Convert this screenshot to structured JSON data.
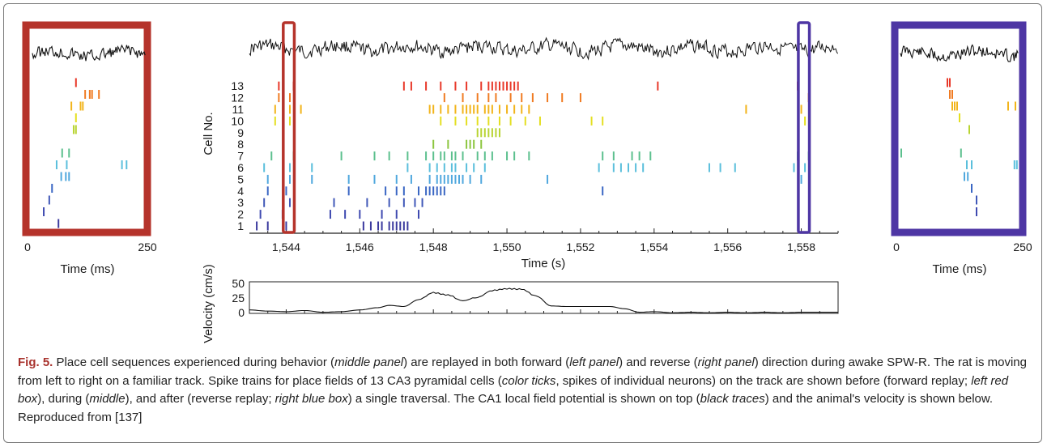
{
  "figure": {
    "left_panel": {
      "xtick_labels": [
        "0",
        "250"
      ],
      "xlabel": "Time (ms)"
    },
    "right_panel": {
      "xtick_labels": [
        "0",
        "250"
      ],
      "xlabel": "Time (ms)"
    },
    "middle_panel": {
      "ylabel": "Cell No.",
      "cell_labels": [
        "1",
        "2",
        "3",
        "4",
        "5",
        "6",
        "7",
        "8",
        "9",
        "10",
        "11",
        "12",
        "13"
      ],
      "xtick_labels": [
        "1,544",
        "1,546",
        "1,548",
        "1,550",
        "1,552",
        "1,554",
        "1,556",
        "1,558"
      ],
      "xlabel": "Time (s)"
    },
    "velocity_panel": {
      "ylabel": "Velocity (cm/s)",
      "ytick_labels": [
        "50",
        "25",
        "0"
      ]
    },
    "colors": {
      "forward_box": "#b5332b",
      "reverse_box": "#4e36a4",
      "cells": [
        "#3b3a9e",
        "#3f4ab0",
        "#4058b8",
        "#3b67c4",
        "#50a8de",
        "#5bbfdc",
        "#5cc08e",
        "#8cc63f",
        "#b8d432",
        "#e4df21",
        "#f2b41b",
        "#f07b22",
        "#e8392a"
      ]
    }
  },
  "chart_data": {
    "type": "scatter",
    "description_free": true,
    "xlim": [
      1543.0,
      1559.0
    ],
    "ylim": [
      0,
      50
    ],
    "replay_windows": [
      [
        1543.92,
        1544.22
      ],
      [
        1557.92,
        1558.22
      ]
    ],
    "spikes": [
      {
        "cell": 1,
        "times": [
          1543.2,
          1543.5,
          1544.0,
          1546.1,
          1546.3,
          1546.5,
          1546.6,
          1546.8,
          1546.9,
          1547.0,
          1547.1,
          1547.2,
          1547.3
        ]
      },
      {
        "cell": 2,
        "times": [
          1543.3,
          1543.9,
          1545.2,
          1545.6,
          1546.0,
          1546.6,
          1547.0,
          1547.6
        ]
      },
      {
        "cell": 3,
        "times": [
          1543.4,
          1544.1,
          1545.3,
          1546.2,
          1546.8,
          1547.2,
          1547.5,
          1547.7
        ]
      },
      {
        "cell": 4,
        "times": [
          1543.5,
          1544.0,
          1545.7,
          1546.7,
          1547.0,
          1547.2,
          1547.6,
          1547.8,
          1547.9,
          1548.0,
          1548.1,
          1548.2,
          1548.3,
          1552.6
        ]
      },
      {
        "cell": 5,
        "times": [
          1543.5,
          1544.1,
          1544.7,
          1545.7,
          1546.4,
          1547.0,
          1547.4,
          1547.9,
          1548.1,
          1548.2,
          1548.3,
          1548.4,
          1548.5,
          1548.6,
          1548.7,
          1548.8,
          1549.0,
          1549.3,
          1551.1,
          1558.0
        ]
      },
      {
        "cell": 6,
        "times": [
          1543.4,
          1544.1,
          1544.7,
          1547.3,
          1547.9,
          1548.1,
          1548.3,
          1548.5,
          1548.6,
          1548.9,
          1549.1,
          1549.4,
          1552.5,
          1552.9,
          1553.1,
          1553.3,
          1553.5,
          1553.7,
          1555.5,
          1555.8,
          1556.2,
          1557.8,
          1558.1
        ]
      },
      {
        "cell": 7,
        "times": [
          1543.6,
          1544.2,
          1545.5,
          1546.4,
          1546.8,
          1547.3,
          1547.8,
          1548.0,
          1548.2,
          1548.3,
          1548.5,
          1548.6,
          1548.8,
          1549.2,
          1549.4,
          1549.6,
          1550.0,
          1550.2,
          1550.6,
          1552.6,
          1552.9,
          1553.4,
          1553.6,
          1553.9,
          1557.9,
          1558.2
        ]
      },
      {
        "cell": 8,
        "times": [
          1548.0,
          1548.4,
          1548.9,
          1549.0,
          1549.1,
          1549.3
        ]
      },
      {
        "cell": 9,
        "times": [
          1549.2,
          1549.3,
          1549.4,
          1549.5,
          1549.6,
          1549.7,
          1549.8
        ]
      },
      {
        "cell": 10,
        "times": [
          1543.7,
          1544.1,
          1548.2,
          1548.6,
          1548.9,
          1549.2,
          1549.5,
          1549.8,
          1550.1,
          1550.5,
          1550.9,
          1552.3,
          1552.6,
          1558.1
        ]
      },
      {
        "cell": 11,
        "times": [
          1543.7,
          1544.1,
          1544.4,
          1547.9,
          1548.0,
          1548.2,
          1548.4,
          1548.6,
          1548.8,
          1548.9,
          1549.0,
          1549.1,
          1549.2,
          1549.4,
          1549.5,
          1549.6,
          1549.8,
          1550.0,
          1550.2,
          1550.4,
          1550.6,
          1556.5,
          1558.0
        ]
      },
      {
        "cell": 12,
        "times": [
          1543.8,
          1544.1,
          1548.3,
          1548.8,
          1549.2,
          1549.5,
          1549.7,
          1550.1,
          1550.4,
          1550.7,
          1551.1,
          1551.5,
          1552.0,
          1558.2
        ]
      },
      {
        "cell": 13,
        "times": [
          1543.8,
          1544.2,
          1547.2,
          1547.4,
          1547.8,
          1548.2,
          1548.6,
          1548.9,
          1549.3,
          1549.5,
          1549.6,
          1549.7,
          1549.8,
          1549.9,
          1550.0,
          1550.1,
          1550.2,
          1550.3,
          1554.1,
          1557.9
        ]
      }
    ],
    "velocity": {
      "x": [
        1543.0,
        1543.5,
        1544.0,
        1544.5,
        1545.0,
        1545.5,
        1546.0,
        1546.5,
        1546.8,
        1547.2,
        1547.6,
        1548.0,
        1548.4,
        1548.8,
        1549.2,
        1549.6,
        1550.0,
        1550.4,
        1550.8,
        1551.2,
        1551.6,
        1552.0,
        1552.4,
        1552.8,
        1553.2,
        1553.6,
        1554.0,
        1554.5,
        1555.0,
        1555.5,
        1556.0,
        1556.5,
        1557.0,
        1557.5,
        1558.0,
        1558.5,
        1559.0
      ],
      "y": [
        6,
        4,
        3,
        5,
        2,
        3,
        6,
        10,
        14,
        12,
        24,
        36,
        32,
        22,
        28,
        40,
        43,
        42,
        30,
        13,
        12,
        12,
        12,
        12,
        8,
        2,
        3,
        1,
        2,
        1,
        2,
        1,
        2,
        1,
        2,
        2,
        2
      ]
    },
    "forward_replay": {
      "xlim": [
        0,
        250
      ],
      "spikes": [
        {
          "cell": 1,
          "times": [
            62
          ]
        },
        {
          "cell": 2,
          "times": [
            30
          ]
        },
        {
          "cell": 3,
          "times": [
            42
          ]
        },
        {
          "cell": 4,
          "times": [
            48
          ]
        },
        {
          "cell": 5,
          "times": [
            68,
            78,
            85
          ]
        },
        {
          "cell": 6,
          "times": [
            58,
            80,
            200,
            210
          ]
        },
        {
          "cell": 7,
          "times": [
            70,
            85
          ]
        },
        {
          "cell": 9,
          "times": [
            95,
            100
          ]
        },
        {
          "cell": 10,
          "times": [
            100
          ]
        },
        {
          "cell": 11,
          "times": [
            90,
            110,
            115
          ]
        },
        {
          "cell": 12,
          "times": [
            120,
            130,
            135,
            150
          ]
        },
        {
          "cell": 13,
          "times": [
            100
          ]
        }
      ]
    },
    "reverse_replay": {
      "xlim": [
        0,
        250
      ],
      "spikes": [
        {
          "cell": 2,
          "times": [
            160
          ]
        },
        {
          "cell": 3,
          "times": [
            160
          ]
        },
        {
          "cell": 4,
          "times": [
            150
          ]
        },
        {
          "cell": 5,
          "times": [
            135,
            142
          ]
        },
        {
          "cell": 6,
          "times": [
            140,
            150,
            238,
            243
          ]
        },
        {
          "cell": 7,
          "times": [
            5,
            128
          ]
        },
        {
          "cell": 9,
          "times": [
            145
          ]
        },
        {
          "cell": 10,
          "times": [
            125
          ]
        },
        {
          "cell": 11,
          "times": [
            110,
            115,
            120,
            225,
            240
          ]
        },
        {
          "cell": 12,
          "times": [
            105,
            110
          ]
        },
        {
          "cell": 13,
          "times": [
            100,
            105
          ]
        }
      ]
    }
  },
  "caption": {
    "label": "Fig. 5.",
    "segments": [
      {
        "t": " Place cell sequences experienced during behavior (",
        "i": false
      },
      {
        "t": "middle panel",
        "i": true
      },
      {
        "t": ") are replayed in both forward (",
        "i": false
      },
      {
        "t": "left panel",
        "i": true
      },
      {
        "t": ") and reverse (",
        "i": false
      },
      {
        "t": "right panel",
        "i": true
      },
      {
        "t": ") direction during awake SPW-R. The rat is moving from left to right on a familiar track. Spike trains for place fields of 13 CA3 pyramidal cells (",
        "i": false
      },
      {
        "t": "color ticks",
        "i": true
      },
      {
        "t": ", spikes of individual neurons) on the track are shown before (forward replay; ",
        "i": false
      },
      {
        "t": "left red box",
        "i": true
      },
      {
        "t": "), during (",
        "i": false
      },
      {
        "t": "middle",
        "i": true
      },
      {
        "t": "), and after (reverse replay; ",
        "i": false
      },
      {
        "t": "right blue box",
        "i": true
      },
      {
        "t": ") a single traversal. The CA1 local field potential is shown on top (",
        "i": false
      },
      {
        "t": "black traces",
        "i": true
      },
      {
        "t": ") and the animal's velocity is shown below. Reproduced from [137]",
        "i": false
      }
    ]
  }
}
